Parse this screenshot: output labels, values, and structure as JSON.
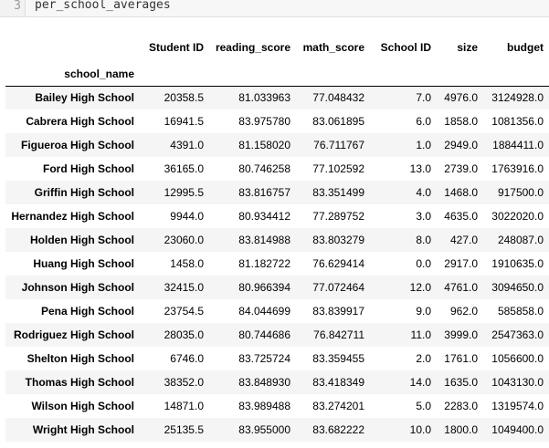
{
  "code_cell": {
    "line_number": "3",
    "code": "per_school_averages"
  },
  "table": {
    "index_name": "school_name",
    "columns": [
      "Student ID",
      "reading_score",
      "math_score",
      "School ID",
      "size",
      "budget"
    ],
    "rows": [
      {
        "name": "Bailey High School",
        "values": [
          "20358.5",
          "81.033963",
          "77.048432",
          "7.0",
          "4976.0",
          "3124928.0"
        ]
      },
      {
        "name": "Cabrera High School",
        "values": [
          "16941.5",
          "83.975780",
          "83.061895",
          "6.0",
          "1858.0",
          "1081356.0"
        ]
      },
      {
        "name": "Figueroa High School",
        "values": [
          "4391.0",
          "81.158020",
          "76.711767",
          "1.0",
          "2949.0",
          "1884411.0"
        ]
      },
      {
        "name": "Ford High School",
        "values": [
          "36165.0",
          "80.746258",
          "77.102592",
          "13.0",
          "2739.0",
          "1763916.0"
        ]
      },
      {
        "name": "Griffin High School",
        "values": [
          "12995.5",
          "83.816757",
          "83.351499",
          "4.0",
          "1468.0",
          "917500.0"
        ]
      },
      {
        "name": "Hernandez High School",
        "values": [
          "9944.0",
          "80.934412",
          "77.289752",
          "3.0",
          "4635.0",
          "3022020.0"
        ]
      },
      {
        "name": "Holden High School",
        "values": [
          "23060.0",
          "83.814988",
          "83.803279",
          "8.0",
          "427.0",
          "248087.0"
        ]
      },
      {
        "name": "Huang High School",
        "values": [
          "1458.0",
          "81.182722",
          "76.629414",
          "0.0",
          "2917.0",
          "1910635.0"
        ]
      },
      {
        "name": "Johnson High School",
        "values": [
          "32415.0",
          "80.966394",
          "77.072464",
          "12.0",
          "4761.0",
          "3094650.0"
        ]
      },
      {
        "name": "Pena High School",
        "values": [
          "23754.5",
          "84.044699",
          "83.839917",
          "9.0",
          "962.0",
          "585858.0"
        ]
      },
      {
        "name": "Rodriguez High School",
        "values": [
          "28035.0",
          "80.744686",
          "76.842711",
          "11.0",
          "3999.0",
          "2547363.0"
        ]
      },
      {
        "name": "Shelton High School",
        "values": [
          "6746.0",
          "83.725724",
          "83.359455",
          "2.0",
          "1761.0",
          "1056600.0"
        ]
      },
      {
        "name": "Thomas High School",
        "values": [
          "38352.0",
          "83.848930",
          "83.418349",
          "14.0",
          "1635.0",
          "1043130.0"
        ]
      },
      {
        "name": "Wilson High School",
        "values": [
          "14871.0",
          "83.989488",
          "83.274201",
          "5.0",
          "2283.0",
          "1319574.0"
        ]
      },
      {
        "name": "Wright High School",
        "values": [
          "25135.5",
          "83.955000",
          "83.682222",
          "10.0",
          "1800.0",
          "1049400.0"
        ]
      }
    ]
  }
}
